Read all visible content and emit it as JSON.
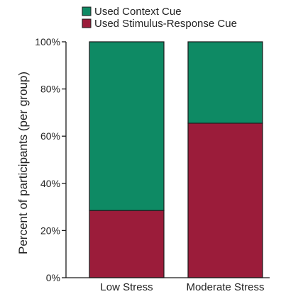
{
  "chart_data": {
    "type": "bar",
    "stacked": true,
    "categories": [
      "Low Stress",
      "Moderate Stress"
    ],
    "series": [
      {
        "name": "Used Stimulus-Response Cue",
        "values": [
          28.5,
          65.5
        ],
        "color": "#9b1c3a"
      },
      {
        "name": "Used Context Cue",
        "values": [
          71.5,
          34.5
        ],
        "color": "#0e8a64"
      }
    ],
    "ylabel": "Percent of participants (per group)",
    "xlabel": "",
    "ylim": [
      0,
      100
    ],
    "yticks": [
      0,
      20,
      40,
      60,
      80,
      100
    ],
    "ytick_labels": [
      "0%",
      "20%",
      "40%",
      "60%",
      "80%",
      "100%"
    ],
    "grid": false,
    "legend": {
      "placement": "top-left",
      "entries": [
        {
          "label": "Used Context Cue",
          "color": "#0e8a64"
        },
        {
          "label": "Used Stimulus-Response Cue",
          "color": "#9b1c3a"
        }
      ]
    }
  }
}
